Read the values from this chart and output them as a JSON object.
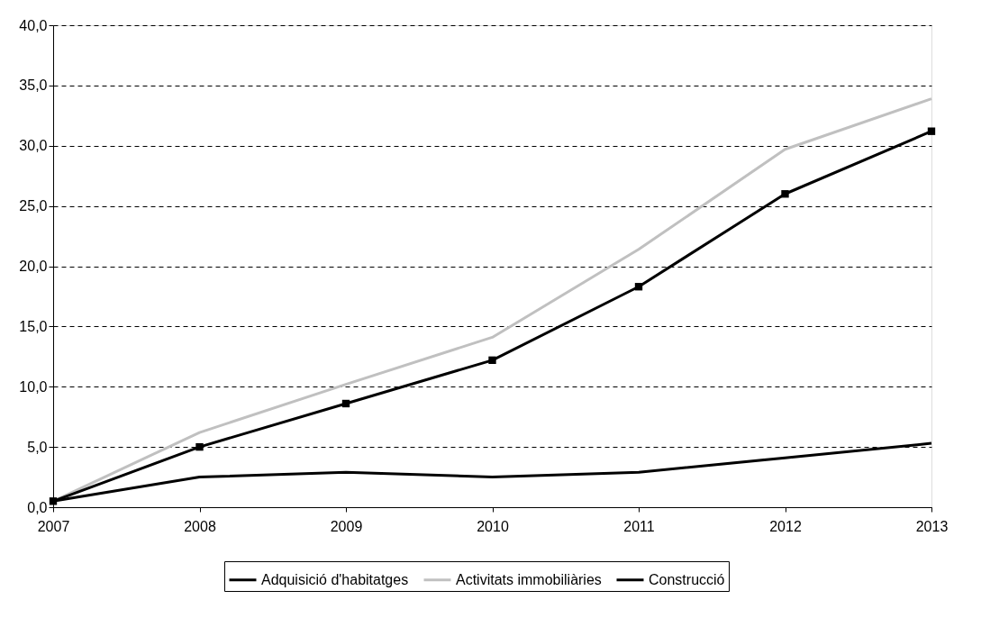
{
  "chart_data": {
    "type": "line",
    "x": [
      2007,
      2008,
      2009,
      2010,
      2011,
      2012,
      2013
    ],
    "xlim": [
      2007,
      2013
    ],
    "xticks": [
      2007,
      2008,
      2009,
      2010,
      2011,
      2012,
      2013
    ],
    "ylim": [
      0,
      40
    ],
    "yticks": [
      {
        "value": 0,
        "label": "0,0"
      },
      {
        "value": 5,
        "label": "5,0"
      },
      {
        "value": 10,
        "label": "10,0"
      },
      {
        "value": 15,
        "label": "15,0"
      },
      {
        "value": 20,
        "label": "20,0"
      },
      {
        "value": 25,
        "label": "25,0"
      },
      {
        "value": 30,
        "label": "30,0"
      },
      {
        "value": 35,
        "label": "35,0"
      },
      {
        "value": 40,
        "label": "40,0"
      }
    ],
    "grid": "y",
    "legend": "bottom",
    "series": [
      {
        "name": "Adquisició d'habitatges",
        "color": "#000000",
        "marker": "none",
        "values": [
          0.5,
          2.5,
          2.9,
          2.5,
          2.9,
          4.1,
          5.3
        ]
      },
      {
        "name": "Activitats immobiliàries",
        "color": "#c0c0c0",
        "marker": "none",
        "values": [
          0.5,
          6.2,
          10.2,
          14.1,
          21.4,
          29.7,
          33.9
        ]
      },
      {
        "name": "Construcció",
        "color": "#000000",
        "marker": "square",
        "values": [
          0.5,
          5.0,
          8.6,
          12.2,
          18.3,
          26.0,
          31.2
        ]
      }
    ]
  }
}
